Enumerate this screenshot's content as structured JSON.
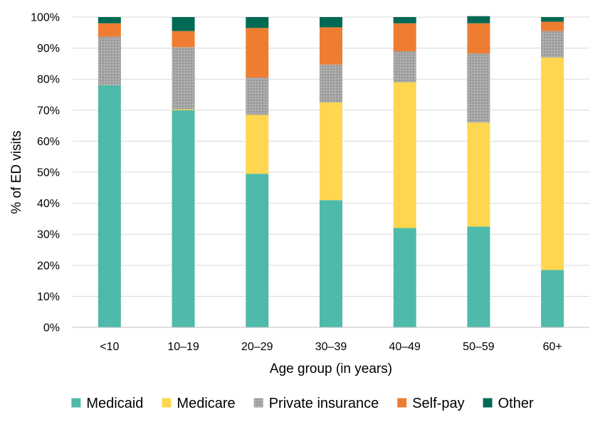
{
  "chart_data": {
    "type": "bar",
    "stacked": true,
    "categories": [
      "<10",
      "10–19",
      "20–29",
      "30–39",
      "40–49",
      "50–59",
      "60+"
    ],
    "series": [
      {
        "name": "Medicaid",
        "color": "#4fbaa9",
        "pattern": "",
        "values": [
          78,
          70,
          49.5,
          41,
          32,
          32.5,
          18.5
        ]
      },
      {
        "name": "Medicare",
        "color": "#ffd64f",
        "pattern": "",
        "values": [
          0,
          0.3,
          19,
          31.5,
          47,
          33.5,
          68.5
        ]
      },
      {
        "name": "Private insurance",
        "color": "#a6a6a6",
        "pattern": "dots",
        "values": [
          15.7,
          20,
          12,
          12.2,
          10,
          22.3,
          8.5
        ]
      },
      {
        "name": "Self-pay",
        "color": "#ef7d31",
        "pattern": "",
        "values": [
          4.3,
          5.2,
          16,
          12,
          9,
          9.7,
          3
        ]
      },
      {
        "name": "Other",
        "color": "#006a55",
        "pattern": "",
        "values": [
          2,
          4.5,
          3.5,
          3.3,
          2,
          2.3,
          1.5
        ]
      }
    ],
    "ylim": [
      0,
      100
    ],
    "yticks": [
      0,
      10,
      20,
      30,
      40,
      50,
      60,
      70,
      80,
      90,
      100
    ],
    "ytick_labels": [
      "0%",
      "10%",
      "20%",
      "30%",
      "40%",
      "50%",
      "60%",
      "70%",
      "80%",
      "90%",
      "100%"
    ],
    "xlabel": "Age group (in years)",
    "ylabel": "% of ED visits",
    "title": "",
    "grid": true,
    "legend_position": "bottom"
  }
}
